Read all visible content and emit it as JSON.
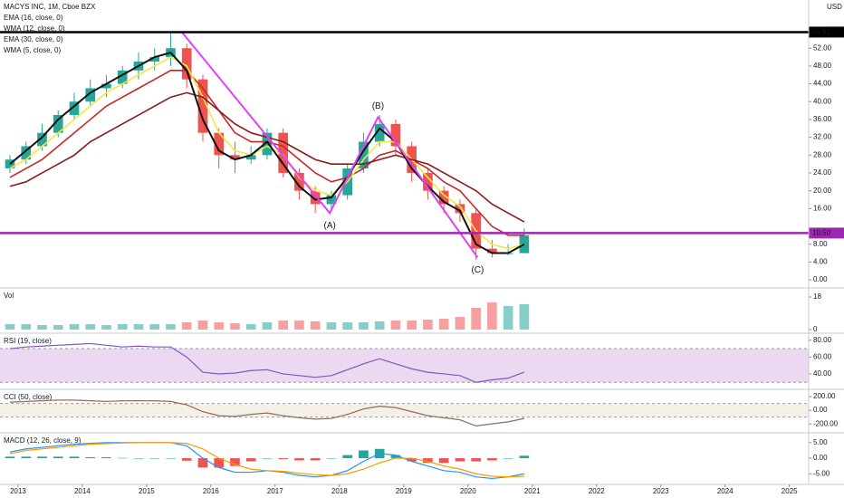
{
  "chart_data": [
    {
      "type": "candlestick",
      "title": "MACYS INC, 1M, Cboe BZX",
      "unit": "USD",
      "x": [
        2012.875,
        2013.125,
        2013.375,
        2013.625,
        2013.875,
        2014.125,
        2014.375,
        2014.625,
        2014.875,
        2015.125,
        2015.375,
        2015.625,
        2015.875,
        2016.125,
        2016.375,
        2016.625,
        2016.875,
        2017.125,
        2017.375,
        2017.625,
        2017.875,
        2018.125,
        2018.375,
        2018.625,
        2018.875,
        2019.125,
        2019.375,
        2019.625,
        2019.875,
        2020.125,
        2020.375,
        2020.625,
        2020.875
      ],
      "open": [
        25,
        27,
        30,
        33,
        37,
        40,
        43,
        44,
        47,
        49,
        50,
        52,
        45,
        33,
        28,
        27,
        28,
        33,
        24,
        20,
        17,
        19,
        25,
        31,
        35,
        30,
        24,
        20,
        17,
        15,
        7,
        6,
        6
      ],
      "high": [
        28,
        31,
        35,
        38,
        42,
        45,
        46,
        48,
        51,
        52,
        55.6,
        53,
        46,
        34,
        31,
        30,
        34,
        34,
        25,
        21,
        20,
        26,
        33,
        37,
        36,
        31,
        25,
        21,
        18,
        16,
        9,
        8,
        11.5
      ],
      "low": [
        24,
        26,
        29,
        32,
        36,
        39,
        41,
        43,
        45,
        47,
        48,
        43,
        31,
        25,
        24,
        26,
        27,
        23,
        18,
        15,
        15.5,
        18,
        24,
        30,
        28,
        22,
        18,
        15,
        13,
        4.5,
        5,
        5.5,
        6
      ],
      "close": [
        27,
        30,
        33,
        37,
        40,
        43,
        44,
        47,
        49,
        50,
        52,
        45,
        33,
        28,
        27,
        28,
        33,
        24,
        20,
        17,
        19,
        25,
        31,
        35,
        30,
        24,
        20,
        17,
        15,
        7,
        6,
        6,
        10
      ],
      "up_color": "#26a69a",
      "down_color": "#ef5350",
      "series": [
        {
          "name": "EMA (16, close, 0)",
          "color": "#c62828",
          "values": [
            23,
            25,
            27,
            30,
            33,
            36,
            39,
            41,
            43,
            45,
            47,
            47,
            43,
            38,
            33,
            31,
            31,
            30,
            27,
            24,
            22,
            23,
            25,
            28,
            29,
            27,
            25,
            22,
            20,
            16,
            12,
            10,
            10
          ]
        },
        {
          "name": "WMA (12, close, 0)",
          "color": "#f5e642",
          "values": [
            25,
            27,
            30,
            33,
            36,
            39,
            42,
            44,
            46,
            48,
            50,
            48,
            41,
            33,
            29,
            28,
            30,
            28,
            23,
            20,
            19,
            22,
            27,
            31,
            31,
            27,
            23,
            19,
            16.5,
            11,
            8,
            7,
            8
          ]
        },
        {
          "name": "EMA (30, close, 0)",
          "color": "#8b1a1a",
          "values": [
            21,
            22,
            24,
            26,
            28,
            31,
            33,
            35,
            37,
            39,
            41,
            42,
            41,
            38,
            35,
            33,
            32,
            31,
            29,
            27,
            26,
            26,
            26,
            27,
            28,
            27,
            26,
            24,
            22,
            20,
            17,
            15,
            13
          ]
        },
        {
          "name": "WMA (5, close, 0)",
          "color": "#111111",
          "values": [
            26,
            29,
            32,
            36,
            39,
            42,
            44,
            46,
            48,
            50,
            51,
            47,
            36,
            29,
            27,
            28,
            31,
            26,
            21,
            18,
            18.5,
            23,
            29,
            34,
            31,
            25,
            21,
            17.5,
            15.5,
            8,
            6,
            6,
            8
          ]
        }
      ],
      "hlines": [
        {
          "value": 55.61,
          "color": "#000000"
        },
        {
          "value": 10.5,
          "label": "10.50",
          "color": "#9c27b0"
        }
      ],
      "pattern": {
        "color": "#e040fb",
        "x": [
          2015.55,
          2017.85,
          2018.6,
          2020.15
        ],
        "y": [
          55.6,
          15,
          36.5,
          5
        ],
        "labels": [
          "(A)",
          "(B)",
          "(C)"
        ]
      },
      "xlim": [
        2012.72,
        2025.3
      ],
      "xticks": [
        2013,
        2014,
        2015,
        2016,
        2017,
        2018,
        2019,
        2020,
        2021,
        2022,
        2023,
        2024,
        2025
      ],
      "ylim": [
        -1,
        62
      ],
      "yticks": [
        {
          "value": 0,
          "label": "0.00"
        },
        {
          "value": 4,
          "label": "4.00"
        },
        {
          "value": 8,
          "label": "8.00"
        },
        {
          "value": 16,
          "label": "16.00"
        },
        {
          "value": 20,
          "label": "20.00"
        },
        {
          "value": 24,
          "label": "24.00"
        },
        {
          "value": 28,
          "label": "28.00"
        },
        {
          "value": 32,
          "label": "32.00"
        },
        {
          "value": 36,
          "label": "36.00"
        },
        {
          "value": 40,
          "label": "40.00"
        },
        {
          "value": 44,
          "label": "44.00"
        },
        {
          "value": 48,
          "label": "48.00"
        },
        {
          "value": 52,
          "label": "52.00"
        }
      ]
    },
    {
      "type": "bar",
      "title": "Vol",
      "values": [
        3,
        3,
        2.5,
        2.5,
        3,
        3,
        2.5,
        3,
        3,
        3,
        3,
        4,
        5,
        4,
        3.5,
        3,
        4,
        5,
        5,
        4.5,
        4,
        4,
        4,
        4.5,
        5,
        5,
        5.5,
        6,
        7,
        12,
        15,
        13,
        14
      ],
      "ylim": [
        0,
        21
      ],
      "yticks": [
        0,
        18
      ]
    },
    {
      "type": "line",
      "title": "RSI (19, close)",
      "color": "#7e57c2",
      "band": [
        30,
        70
      ],
      "band_color": "#e1bee7",
      "values": [
        70,
        72,
        73,
        74,
        75,
        76,
        74,
        72,
        73,
        72,
        72,
        60,
        42,
        40,
        41,
        44,
        45,
        40,
        38,
        36,
        38,
        45,
        52,
        58,
        52,
        46,
        42,
        40,
        38,
        30,
        33,
        35,
        42
      ],
      "ylim": [
        26,
        84
      ],
      "yticks": [
        {
          "value": 80,
          "label": "80.00"
        },
        {
          "value": 60,
          "label": "60.00"
        },
        {
          "value": 40,
          "label": "40.00"
        }
      ]
    },
    {
      "type": "line",
      "title": "CCI (50, close)",
      "color": "#8d6e63",
      "band": [
        -100,
        100
      ],
      "band_color": "#efe6d6",
      "values": [
        120,
        130,
        140,
        150,
        150,
        140,
        130,
        140,
        140,
        140,
        130,
        80,
        -20,
        -80,
        -90,
        -60,
        -40,
        -80,
        -110,
        -130,
        -120,
        -60,
        20,
        60,
        40,
        -20,
        -80,
        -110,
        -140,
        -230,
        -200,
        -170,
        -120
      ],
      "ylim": [
        -278,
        255
      ],
      "yticks": [
        {
          "value": 200,
          "label": "200.00"
        },
        {
          "value": 0,
          "label": "0.00"
        },
        {
          "value": -200,
          "label": "-200.00"
        }
      ]
    },
    {
      "type": "macd",
      "title": "MACD (12, 26, close, 9)",
      "histogram": [
        0.5,
        0.5,
        0.5,
        0.5,
        0.5,
        0.3,
        0.3,
        0.1,
        0,
        0,
        0,
        -0.8,
        -3,
        -3,
        -2.5,
        -1,
        0,
        -0.3,
        -0.7,
        -0.7,
        0,
        1,
        2.5,
        3,
        1,
        -1,
        -1.5,
        -1.5,
        -1,
        -1,
        -0.7,
        0,
        0.8
      ],
      "macd": [
        2,
        3,
        3.5,
        4,
        4.5,
        4.8,
        5,
        5,
        5,
        5,
        5,
        4,
        0,
        -3,
        -4.5,
        -4.5,
        -4,
        -4.5,
        -5.5,
        -6,
        -5.5,
        -4,
        -1,
        1.5,
        1,
        -1,
        -2.5,
        -4,
        -4.5,
        -6,
        -6.5,
        -6,
        -5
      ],
      "signal": [
        1.5,
        2.5,
        3,
        3.5,
        4,
        4.5,
        4.7,
        4.9,
        5,
        5,
        5,
        4.8,
        3,
        0,
        -2,
        -3.5,
        -4,
        -4.2,
        -4.8,
        -5.3,
        -5.5,
        -5,
        -3.5,
        -1.5,
        0,
        0,
        -1,
        -2.5,
        -3.5,
        -5,
        -5.8,
        -6,
        -5.8
      ],
      "macd_color": "#2196f3",
      "signal_color": "#ff9800",
      "up_color": "#26a69a",
      "down_color": "#ef5350",
      "ylim": [
        -7.25,
        7
      ],
      "yticks": [
        {
          "value": 5,
          "label": "5.00"
        },
        {
          "value": 0,
          "label": "0.00"
        },
        {
          "value": -5,
          "label": "-5.00"
        }
      ]
    }
  ]
}
